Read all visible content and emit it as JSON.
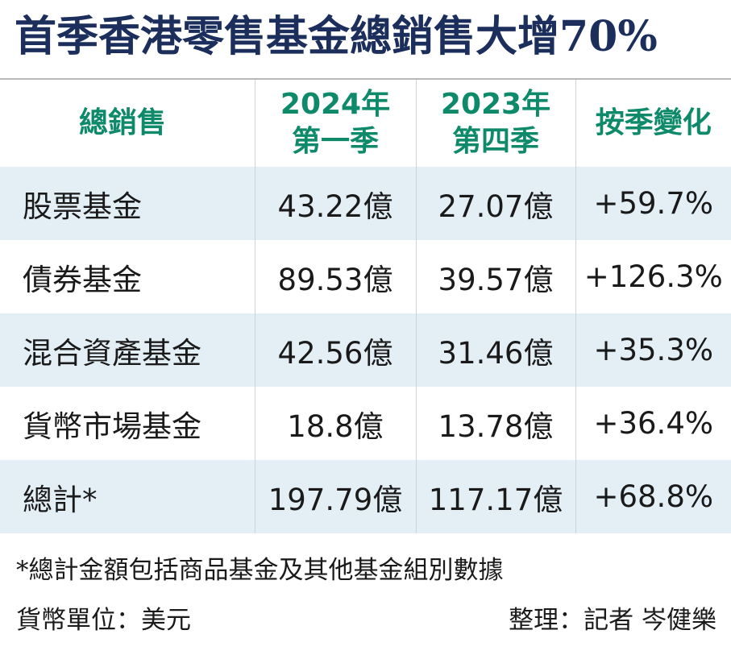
{
  "title": "首季香港零售基金總銷售大增70%",
  "chart_data": {
    "type": "table",
    "columns": [
      {
        "line1": "總銷售",
        "line2": ""
      },
      {
        "line1": "2024年",
        "line2": "第一季"
      },
      {
        "line1": "2023年",
        "line2": "第四季"
      },
      {
        "line1": "按季變化",
        "line2": ""
      }
    ],
    "rows": [
      {
        "category": "股票基金",
        "q1_2024": "43.22億",
        "q4_2023": "27.07億",
        "change": "+59.7%"
      },
      {
        "category": "債券基金",
        "q1_2024": "89.53億",
        "q4_2023": "39.57億",
        "change": "+126.3%"
      },
      {
        "category": "混合資產基金",
        "q1_2024": "42.56億",
        "q4_2023": "31.46億",
        "change": "+35.3%"
      },
      {
        "category": "貨幣市場基金",
        "q1_2024": "18.8億",
        "q4_2023": "13.78億",
        "change": "+36.4%"
      },
      {
        "category": "總計*",
        "q1_2024": "197.79億",
        "q4_2023": "117.17億",
        "change": "+68.8%"
      }
    ]
  },
  "footnote": "*總計金額包括商品基金及其他基金組別數據",
  "currency_note": "貨幣單位：美元",
  "credit": "整理：記者 岑健樂",
  "colors": {
    "title": "#1c2f5c",
    "header": "#0e8a6a",
    "row_shade": "#e4eff5"
  }
}
